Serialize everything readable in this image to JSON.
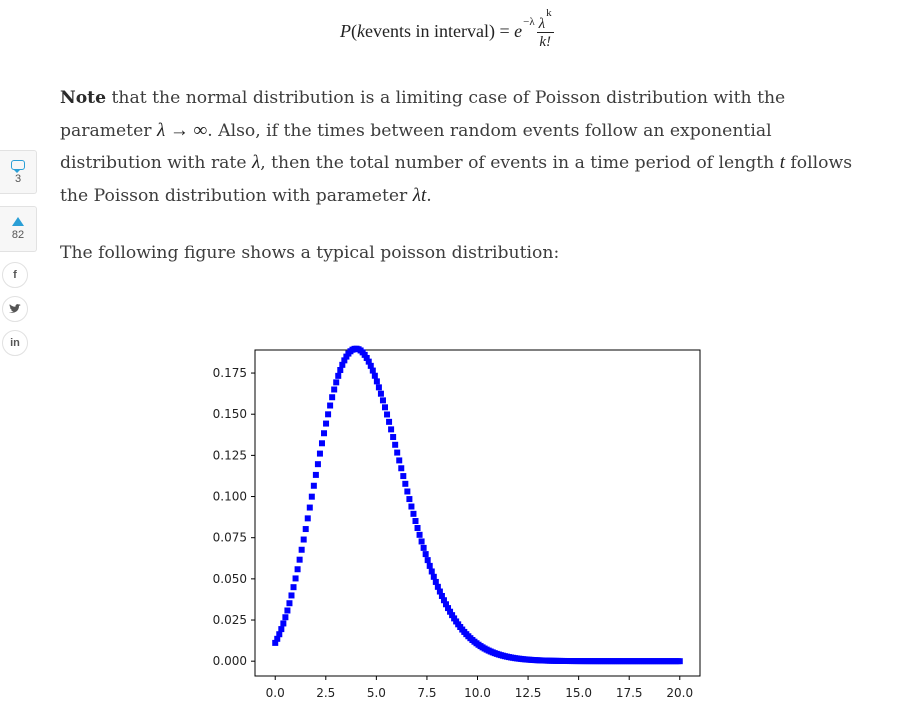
{
  "formula": {
    "P": "P",
    "open": "(",
    "k": "k",
    "events_text": " events in interval",
    "close": ")",
    "equals": " = ",
    "e": "e",
    "exponent": "−λ",
    "numerator_base": "λ",
    "numerator_exp": "k",
    "denominator": "k!"
  },
  "paragraph1": {
    "note": "Note",
    "t1": " that the normal distribution is a limiting case of Poisson distribution with the parameter ",
    "m1": "λ → ∞",
    "t2": ". Also, if the times between random events follow an exponential distribution with rate ",
    "m2": "λ",
    "t3": ", then the total number of events in a time period of length ",
    "m3": "t",
    "t4": " follows the Poisson distribution with parameter ",
    "m4": "λt",
    "t5": "."
  },
  "paragraph2": "The following figure shows a typical poisson distribution:",
  "sidebar": {
    "comment_count": "3",
    "vote_count": "82",
    "facebook": "f",
    "twitter": "t",
    "linkedin": "in",
    "icons": [
      "comment-icon",
      "upvote-icon",
      "facebook-icon",
      "twitter-icon",
      "linkedin-icon"
    ]
  },
  "chart_data": {
    "type": "scatter",
    "marker_color": "#0000ff",
    "marker": "square",
    "lambda": 4.5,
    "x_range": [
      0.0,
      20.0
    ],
    "num_points": 200,
    "xlim": [
      -1.0,
      21.0
    ],
    "ylim": [
      -0.009,
      0.189
    ],
    "xticks": [
      "0.0",
      "2.5",
      "5.0",
      "7.5",
      "10.0",
      "12.5",
      "15.0",
      "17.5",
      "20.0"
    ],
    "xtick_values": [
      0,
      2.5,
      5,
      7.5,
      10,
      12.5,
      15,
      17.5,
      20
    ],
    "yticks": [
      "0.000",
      "0.025",
      "0.050",
      "0.075",
      "0.100",
      "0.125",
      "0.150",
      "0.175"
    ],
    "ytick_values": [
      0,
      0.025,
      0.05,
      0.075,
      0.1,
      0.125,
      0.15,
      0.175
    ],
    "peak": {
      "x": 4.5,
      "y": 0.18
    },
    "grid": false
  }
}
